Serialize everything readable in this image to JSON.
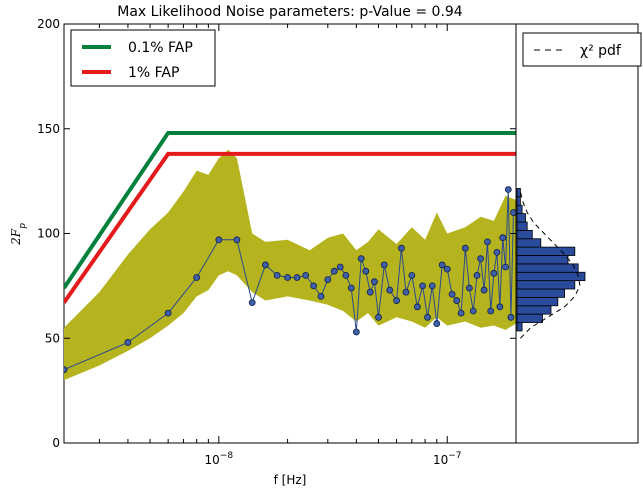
{
  "chart_data": [
    {
      "type": "line",
      "title": "Max Likelihood Noise parameters: p-Value = 0.94",
      "xlabel": "f [Hz]",
      "ylabel": "2F_p",
      "xscale": "log",
      "xlim": [
        2.1e-09,
        2e-07
      ],
      "ylim": [
        0,
        200
      ],
      "xticks": [
        {
          "value": 1e-08,
          "base": "10",
          "exp": "−8"
        },
        {
          "value": 1e-07,
          "base": "10",
          "exp": "−7"
        }
      ],
      "yticks": [
        0,
        50,
        100,
        150,
        200
      ],
      "legend_position": "top-left",
      "threshold_lines": [
        {
          "name": "0.1% FAP",
          "color": "#00803a",
          "x": [
            2.1e-09,
            6e-09,
            2e-07
          ],
          "y": [
            74,
            148,
            148
          ]
        },
        {
          "name": "1% FAP",
          "color": "#e41a1c",
          "x": [
            2.1e-09,
            6e-09,
            2e-07
          ],
          "y": [
            67,
            138,
            138
          ]
        }
      ],
      "band": {
        "color": "#b5b41e",
        "x": [
          2.1e-09,
          3e-09,
          4e-09,
          5e-09,
          6e-09,
          7e-09,
          8e-09,
          9e-09,
          1e-08,
          1.1e-08,
          1.2e-08,
          1.4e-08,
          1.6e-08,
          2e-08,
          2.5e-08,
          3e-08,
          3.5e-08,
          4e-08,
          4.5e-08,
          5e-08,
          6e-08,
          7e-08,
          8e-08,
          9e-08,
          1e-07,
          1.2e-07,
          1.4e-07,
          1.6e-07,
          1.8e-07,
          2e-07
        ],
        "upper": [
          55,
          72,
          90,
          102,
          110,
          120,
          130,
          128,
          136,
          140,
          136,
          100,
          96,
          97,
          92,
          98,
          100,
          92,
          96,
          102,
          95,
          103,
          97,
          110,
          100,
          103,
          108,
          106,
          118,
          116
        ],
        "lower": [
          30,
          37,
          44,
          50,
          56,
          62,
          70,
          73,
          80,
          82,
          80,
          72,
          68,
          70,
          68,
          66,
          63,
          58,
          62,
          56,
          60,
          58,
          55,
          60,
          56,
          58,
          55,
          56,
          54,
          57
        ]
      },
      "series": [
        {
          "color": "#2a4a8f",
          "x": [
            2.1e-09,
            4e-09,
            6e-09,
            8e-09,
            1e-08,
            1.2e-08,
            1.4e-08,
            1.6e-08,
            1.8e-08,
            2e-08,
            2.2e-08,
            2.4e-08,
            2.6e-08,
            2.8e-08,
            3e-08,
            3.2e-08,
            3.4e-08,
            3.6e-08,
            3.8e-08,
            4e-08,
            4.2e-08,
            4.4e-08,
            4.6e-08,
            4.8e-08,
            5e-08,
            5.3e-08,
            5.6e-08,
            6e-08,
            6.3e-08,
            6.6e-08,
            7e-08,
            7.4e-08,
            7.8e-08,
            8.2e-08,
            8.6e-08,
            9e-08,
            9.5e-08,
            1e-07,
            1.05e-07,
            1.1e-07,
            1.15e-07,
            1.2e-07,
            1.25e-07,
            1.3e-07,
            1.35e-07,
            1.4e-07,
            1.45e-07,
            1.5e-07,
            1.55e-07,
            1.6e-07,
            1.65e-07,
            1.7e-07,
            1.75e-07,
            1.8e-07,
            1.85e-07,
            1.9e-07,
            1.95e-07
          ],
          "y": [
            35,
            48,
            62,
            79,
            97,
            97,
            67,
            85,
            80,
            79,
            79,
            80,
            75,
            70,
            78,
            82,
            84,
            80,
            74,
            53,
            88,
            82,
            72,
            77,
            60,
            85,
            73,
            68,
            93,
            72,
            80,
            65,
            75,
            60,
            75,
            57,
            85,
            83,
            71,
            68,
            62,
            93,
            74,
            63,
            80,
            88,
            73,
            96,
            63,
            81,
            91,
            65,
            98,
            84,
            121,
            60,
            110
          ]
        }
      ],
      "side_panel": {
        "legend": "χ² pdf",
        "bins": [
          {
            "center": 55.5,
            "count": 0.3
          },
          {
            "center": 59.5,
            "count": 1.5
          },
          {
            "center": 63.5,
            "count": 2.0
          },
          {
            "center": 67.5,
            "count": 2.4
          },
          {
            "center": 71.5,
            "count": 2.8
          },
          {
            "center": 75.5,
            "count": 3.4
          },
          {
            "center": 79.5,
            "count": 4.0
          },
          {
            "center": 83.5,
            "count": 3.6
          },
          {
            "center": 87.5,
            "count": 3.0
          },
          {
            "center": 91.5,
            "count": 3.4
          },
          {
            "center": 95.5,
            "count": 1.4
          },
          {
            "center": 99.5,
            "count": 0.9
          },
          {
            "center": 103.5,
            "count": 0.6
          },
          {
            "center": 107.5,
            "count": 0.5
          },
          {
            "center": 111.5,
            "count": 0.3
          },
          {
            "center": 115.5,
            "count": 0.2
          },
          {
            "center": 119.5,
            "count": 0.2
          }
        ],
        "hist_color": "#2a4a9c",
        "pdf": {
          "y": [
            50,
            55,
            60,
            65,
            70,
            75,
            80,
            85,
            90,
            95,
            100,
            105,
            110,
            115,
            120
          ],
          "density": [
            0.2,
            0.8,
            1.8,
            2.8,
            3.4,
            3.7,
            3.6,
            3.3,
            2.8,
            2.2,
            1.6,
            1.0,
            0.6,
            0.35,
            0.2
          ]
        }
      }
    }
  ]
}
